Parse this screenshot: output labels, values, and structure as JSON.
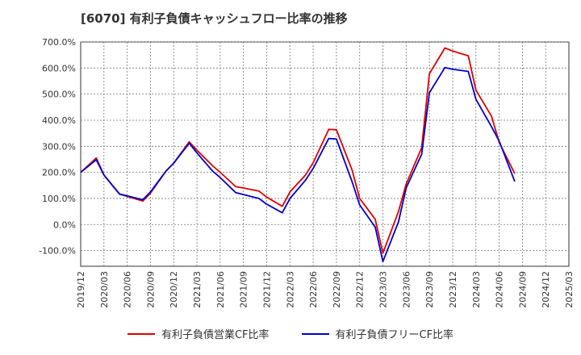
{
  "title": "[6070]  有利子負債キャッシュフロー比率の推移",
  "chart_data": {
    "type": "line",
    "title": "[6070]  有利子負債キャッシュフロー比率の推移",
    "xlabel": "",
    "ylabel": "",
    "ylim": [
      -160,
      700
    ],
    "y_ticks": [
      -100,
      0,
      100,
      200,
      300,
      400,
      500,
      600,
      700
    ],
    "y_tick_labels": [
      "-100.0%",
      "0.0%",
      "100.0%",
      "200.0%",
      "300.0%",
      "400.0%",
      "500.0%",
      "600.0%",
      "700.0%"
    ],
    "x_tick_labels": [
      "2019/12",
      "2020/03",
      "2020/06",
      "2020/09",
      "2020/12",
      "2021/03",
      "2021/06",
      "2021/09",
      "2021/12",
      "2022/03",
      "2022/06",
      "2022/09",
      "2022/12",
      "2023/03",
      "2023/06",
      "2023/09",
      "2023/12",
      "2024/03",
      "2024/06",
      "2024/09",
      "2024/12",
      "2025/03"
    ],
    "grid": true,
    "legend_position": "bottom",
    "series": [
      {
        "name": "有利子負債営業CF比率",
        "color": "#e00000",
        "points": [
          [
            0,
            200
          ],
          [
            0.67,
            255
          ],
          [
            1,
            190
          ],
          [
            1.67,
            117
          ],
          [
            2,
            108
          ],
          [
            2.67,
            90
          ],
          [
            3,
            120
          ],
          [
            3.67,
            205
          ],
          [
            4,
            235
          ],
          [
            4.67,
            317
          ],
          [
            5,
            285
          ],
          [
            5.67,
            225
          ],
          [
            6,
            200
          ],
          [
            6.67,
            145
          ],
          [
            7,
            140
          ],
          [
            7.67,
            128
          ],
          [
            8,
            105
          ],
          [
            8.67,
            70
          ],
          [
            9,
            125
          ],
          [
            9.67,
            190
          ],
          [
            10,
            237
          ],
          [
            10.67,
            365
          ],
          [
            11,
            363
          ],
          [
            11.67,
            210
          ],
          [
            12,
            100
          ],
          [
            12.67,
            20
          ],
          [
            13,
            -110
          ],
          [
            13.67,
            50
          ],
          [
            14,
            155
          ],
          [
            14.67,
            295
          ],
          [
            15,
            578
          ],
          [
            15.67,
            677
          ],
          [
            16,
            665
          ],
          [
            16.67,
            647
          ],
          [
            17,
            515
          ],
          [
            17.67,
            415
          ],
          [
            18,
            315
          ],
          [
            18.67,
            195
          ]
        ]
      },
      {
        "name": "有利子負債フリーCF比率",
        "color": "#0000cc",
        "points": [
          [
            0,
            200
          ],
          [
            0.67,
            248
          ],
          [
            1,
            190
          ],
          [
            1.67,
            117
          ],
          [
            2,
            110
          ],
          [
            2.67,
            95
          ],
          [
            3,
            125
          ],
          [
            3.67,
            205
          ],
          [
            4,
            235
          ],
          [
            4.67,
            312
          ],
          [
            5,
            275
          ],
          [
            5.67,
            205
          ],
          [
            6,
            180
          ],
          [
            6.67,
            122
          ],
          [
            7,
            115
          ],
          [
            7.67,
            100
          ],
          [
            8,
            78
          ],
          [
            8.67,
            45
          ],
          [
            9,
            100
          ],
          [
            9.67,
            170
          ],
          [
            10,
            215
          ],
          [
            10.67,
            330
          ],
          [
            11,
            328
          ],
          [
            11.67,
            165
          ],
          [
            12,
            75
          ],
          [
            12.67,
            -10
          ],
          [
            13,
            -142
          ],
          [
            13.67,
            10
          ],
          [
            14,
            140
          ],
          [
            14.67,
            270
          ],
          [
            15,
            505
          ],
          [
            15.67,
            602
          ],
          [
            16,
            595
          ],
          [
            16.67,
            587
          ],
          [
            17,
            480
          ],
          [
            17.67,
            375
          ],
          [
            18,
            320
          ],
          [
            18.67,
            165
          ]
        ]
      }
    ]
  }
}
